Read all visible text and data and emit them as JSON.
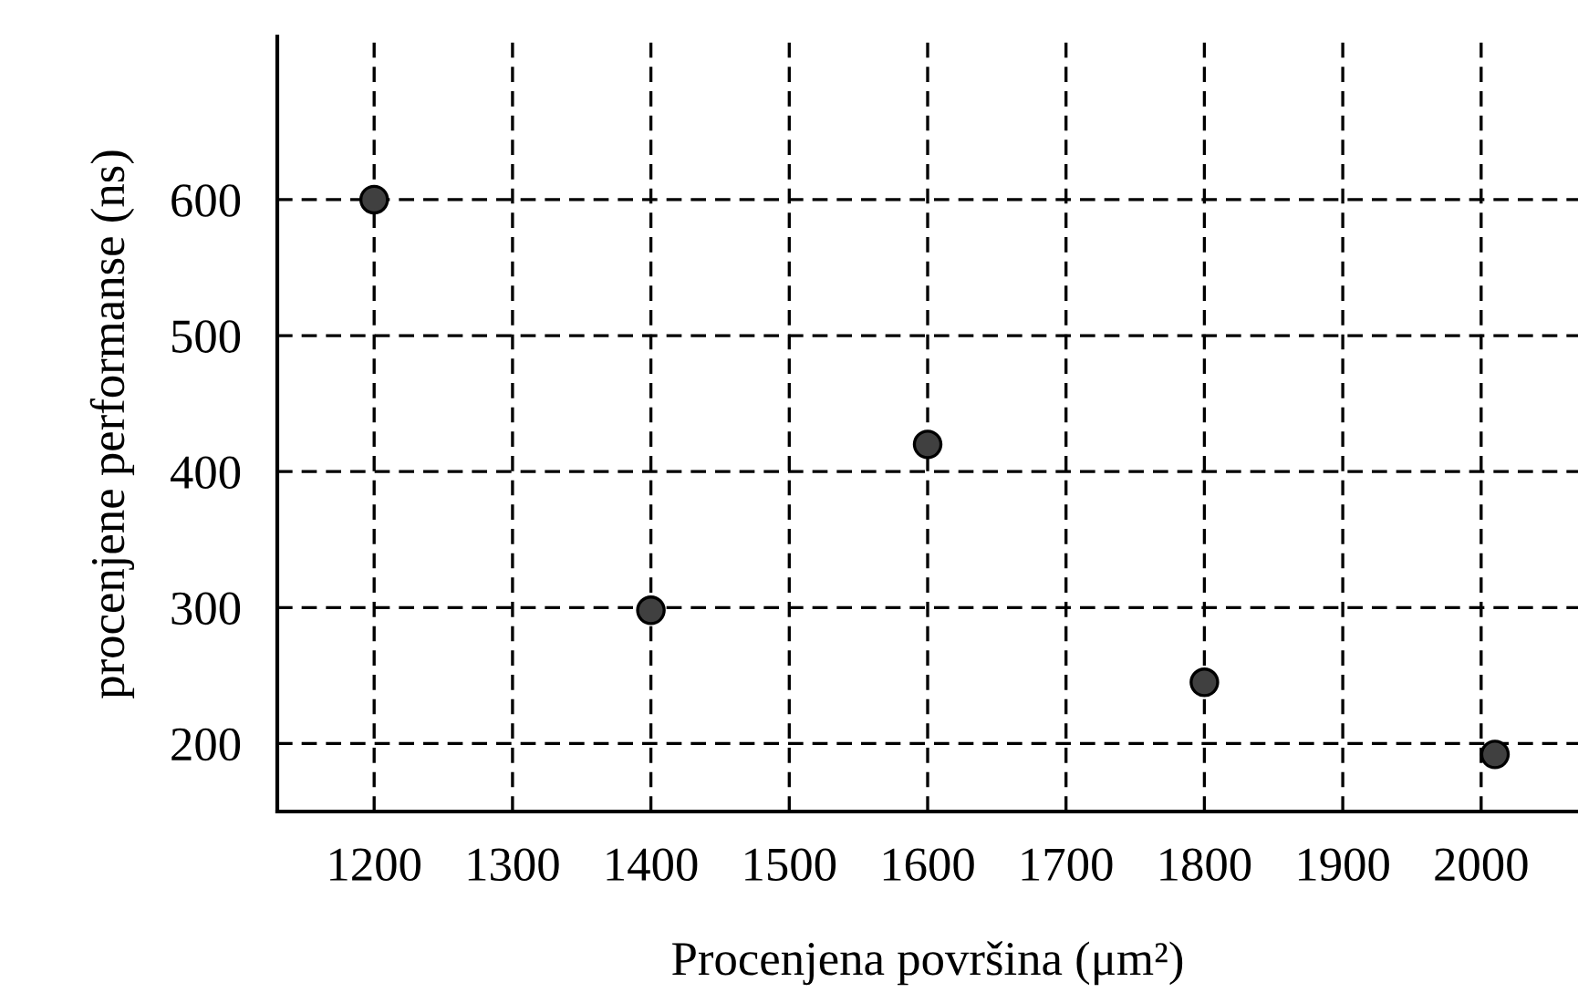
{
  "chart_data": {
    "type": "scatter",
    "xlabel": "Procenjena površina (μm²)",
    "ylabel": "procenjene performanse (ns)",
    "x": [
      1200,
      1400,
      1600,
      1800,
      2010
    ],
    "values": [
      600,
      298,
      420,
      245,
      192
    ],
    "color": "#404040",
    "marker": "circle",
    "xlim": [
      1130,
      2070
    ],
    "ylim": [
      150,
      720
    ],
    "xticks": [
      1200,
      1300,
      1400,
      1500,
      1600,
      1700,
      1800,
      1900,
      2000
    ],
    "yticks": [
      200,
      300,
      400,
      500,
      600
    ],
    "grid": true
  }
}
